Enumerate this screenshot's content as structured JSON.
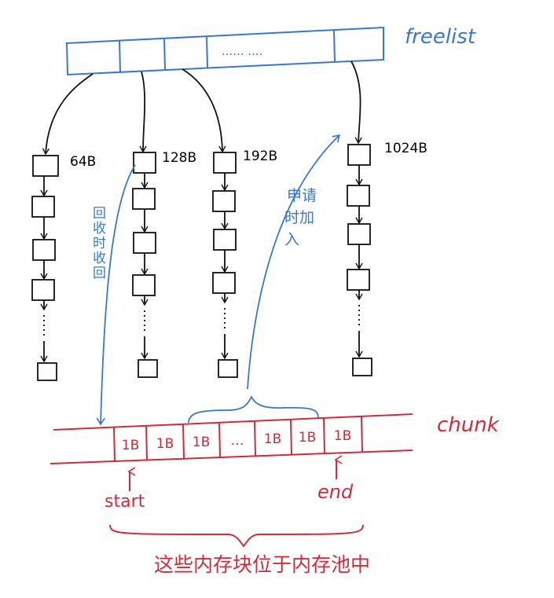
{
  "freelist": {
    "label": "freelist",
    "ellipsis": "...... ....",
    "colors": {
      "stroke": "#3a78c8"
    }
  },
  "lists": [
    {
      "size": "64B"
    },
    {
      "size": "128B"
    },
    {
      "size": "192B"
    },
    {
      "size": "1024B"
    }
  ],
  "annotations": {
    "recycle": "回收时收回",
    "apply": [
      "申请",
      "时加",
      "入"
    ]
  },
  "chunk": {
    "label": "chunk",
    "cells": [
      "1B",
      "1B",
      "1B",
      "…",
      "1B",
      "1B",
      "1B"
    ],
    "start": "start",
    "end": "end",
    "caption": "这些内存块位于内存池中",
    "colors": {
      "stroke": "#cc2d3a"
    }
  },
  "colors": {
    "node": "#111111",
    "blue": "#3a78c8",
    "red": "#cc2d3a"
  }
}
